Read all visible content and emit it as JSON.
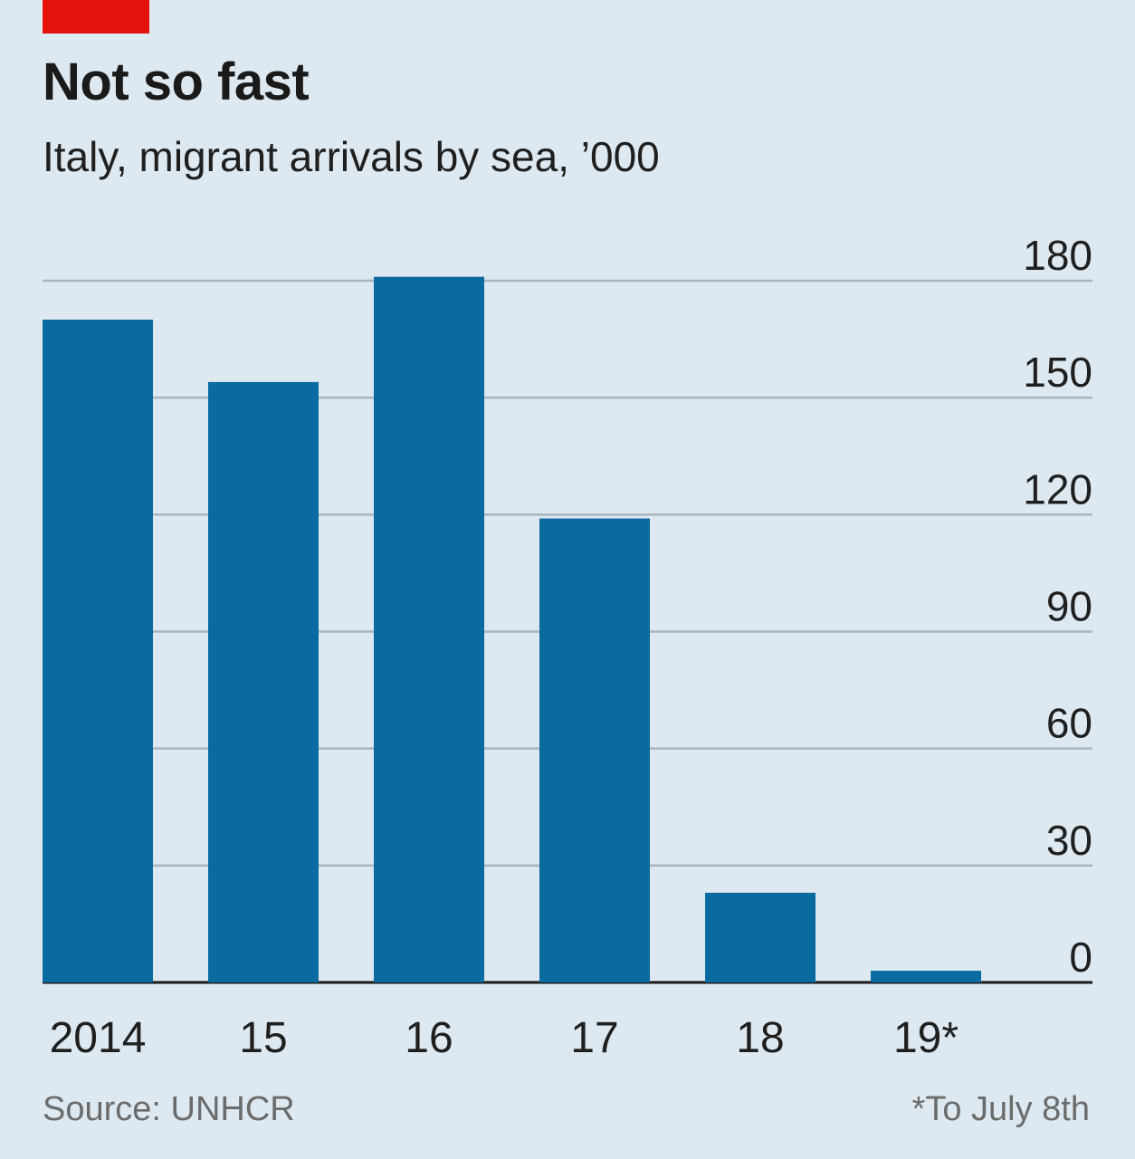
{
  "header": {
    "title": "Not so fast",
    "subtitle": "Italy, migrant arrivals by sea, ’000"
  },
  "footer": {
    "source": "Source: UNHCR",
    "note": "*To July 8th"
  },
  "colors": {
    "bar": "#0a6ba0",
    "background": "#dde8f0",
    "accent": "#e3120b",
    "grid": "#a9b6c0"
  },
  "chart_data": {
    "type": "bar",
    "categories": [
      "2014",
      "15",
      "16",
      "17",
      "18",
      "19*"
    ],
    "values": [
      170,
      154,
      181,
      119,
      23,
      3
    ],
    "ylim": [
      0,
      180
    ],
    "yticks": [
      0,
      30,
      60,
      90,
      120,
      150,
      180
    ],
    "grid": true,
    "yaxis_side": "right",
    "title": "Not so fast",
    "subtitle": "Italy, migrant arrivals by sea, ’000"
  }
}
